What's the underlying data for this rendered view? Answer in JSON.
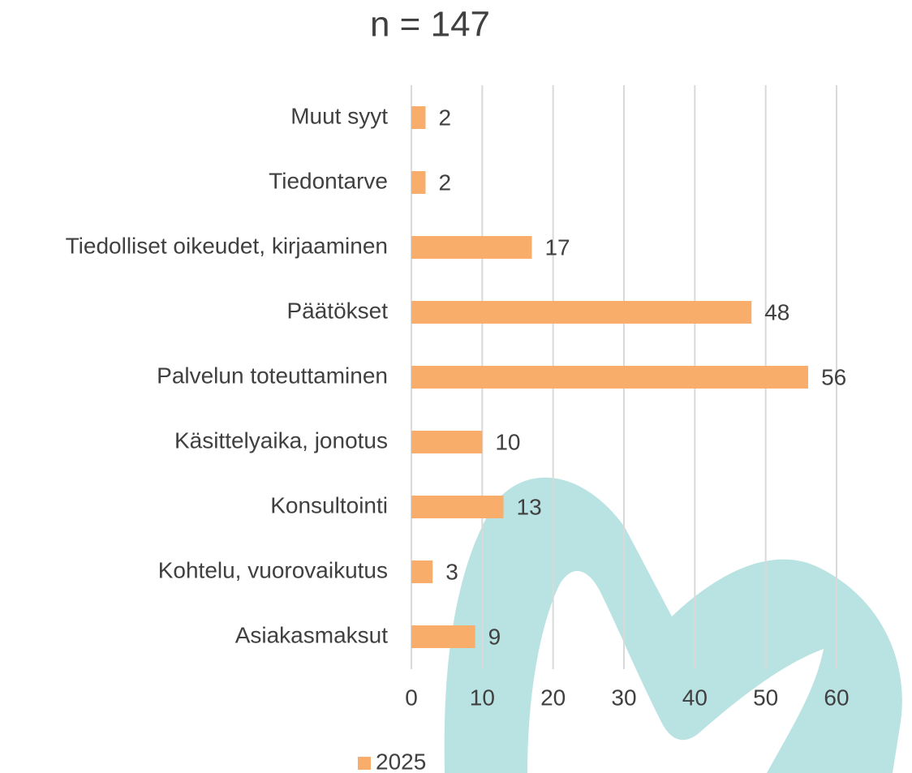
{
  "chart_data": {
    "type": "bar",
    "orientation": "horizontal",
    "title": "n = 147",
    "categories": [
      "Muut syyt",
      "Tiedontarve",
      "Tiedolliset oikeudet, kirjaaminen",
      "Päätökset",
      "Palvelun toteuttaminen",
      "Käsittelyaika, jonotus",
      "Konsultointi",
      "Kohtelu, vuorovaikutus",
      "Asiakasmaksut"
    ],
    "series": [
      {
        "name": "2025",
        "color": "#f8ad6b",
        "values": [
          2,
          2,
          17,
          48,
          56,
          10,
          13,
          3,
          9
        ]
      }
    ],
    "xlim": [
      0,
      60
    ],
    "xticks": [
      0,
      10,
      20,
      30,
      40,
      50,
      60
    ],
    "grid": true,
    "legend": "bottom"
  }
}
